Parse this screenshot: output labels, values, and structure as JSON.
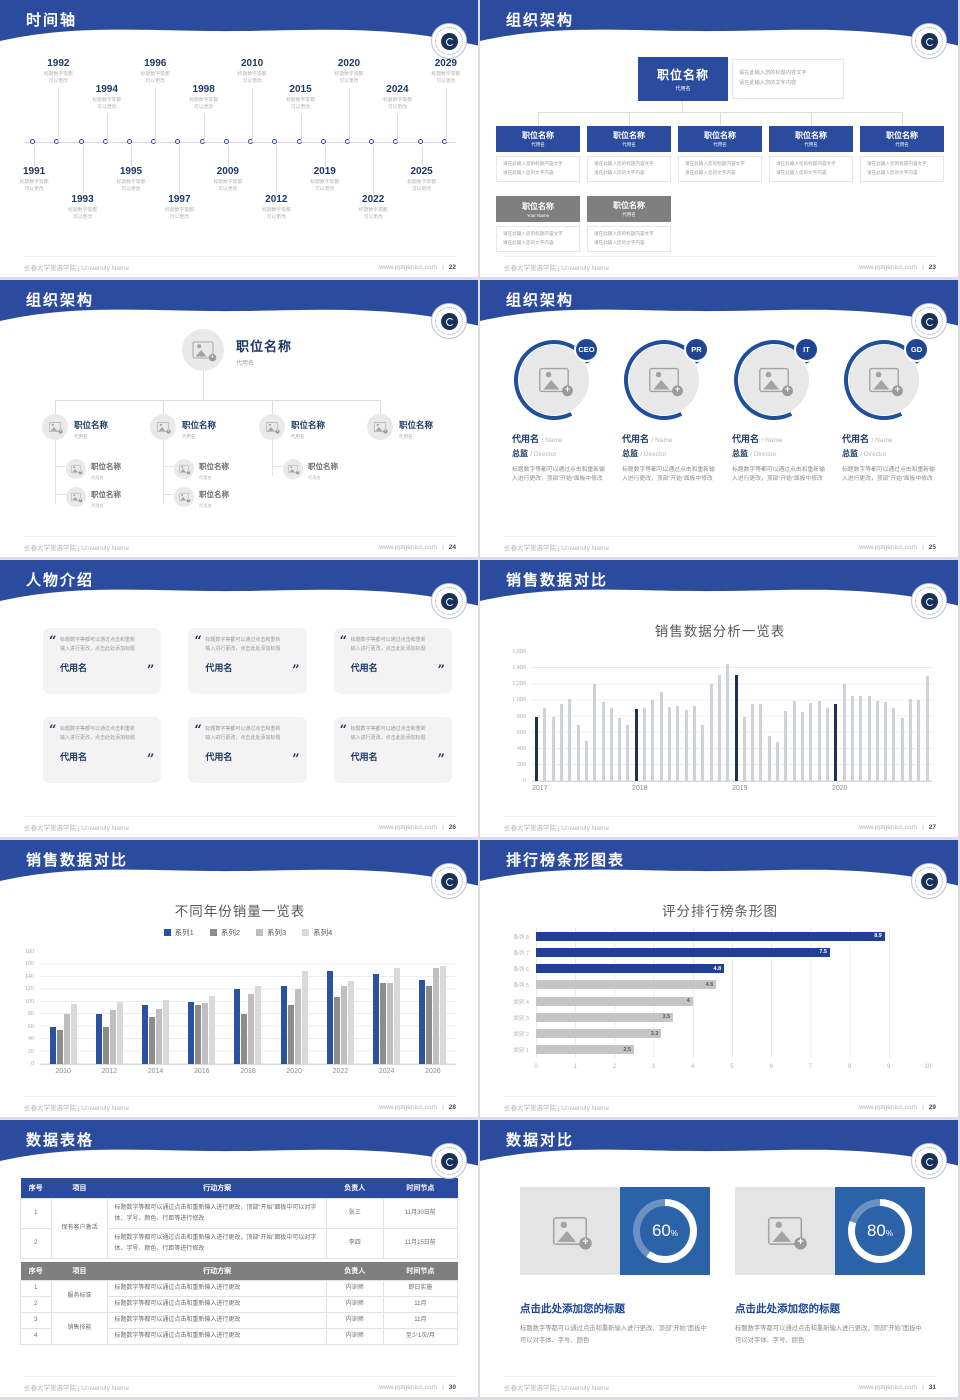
{
  "global": {
    "footer_left": "长春大学旅游学院 | University Name",
    "footer_site": "www.pptgenius.com",
    "footer_sep": "|",
    "colors": {
      "accent_blue": "#2B4B9E",
      "navy": "#1F3864",
      "gray_box": "#7F7F7F",
      "bar_gray": "#CFD3D9",
      "bar_navy": "#1C3257",
      "donut_blue": "#2B62A8"
    }
  },
  "slides": {
    "s22": {
      "title": "时间轴",
      "page": "22",
      "items": [
        {
          "year": "1991",
          "pos": "below-high",
          "note1": "标题数字等都",
          "note2": "可以更改"
        },
        {
          "year": "1992",
          "pos": "above-high",
          "note1": "标题数字等都",
          "note2": "可以更改"
        },
        {
          "year": "1993",
          "pos": "below-low",
          "note1": "标题数字等都",
          "note2": "可以更改"
        },
        {
          "year": "1994",
          "pos": "above-low",
          "note1": "标题数字等都",
          "note2": "可以更改"
        },
        {
          "year": "1995",
          "pos": "below-high",
          "note1": "标题数字等都",
          "note2": "可以更改"
        },
        {
          "year": "1996",
          "pos": "above-high",
          "note1": "标题数字等都",
          "note2": "可以更改"
        },
        {
          "year": "1997",
          "pos": "below-low",
          "note1": "标题数字等都",
          "note2": "可以更改"
        },
        {
          "year": "1998",
          "pos": "above-low",
          "note1": "标题数字等都",
          "note2": "可以更改"
        },
        {
          "year": "2009",
          "pos": "below-high",
          "note1": "标题数字等都",
          "note2": "可以更改"
        },
        {
          "year": "2010",
          "pos": "above-high",
          "note1": "标题数字等都",
          "note2": "可以更改"
        },
        {
          "year": "2012",
          "pos": "below-low",
          "note1": "标题数字等都",
          "note2": "可以更改"
        },
        {
          "year": "2015",
          "pos": "above-low",
          "note1": "标题数字等都",
          "note2": "可以更改"
        },
        {
          "year": "2019",
          "pos": "below-high",
          "note1": "标题数字等都",
          "note2": "可以更改"
        },
        {
          "year": "2020",
          "pos": "above-high",
          "note1": "标题数字等都",
          "note2": "可以更改"
        },
        {
          "year": "2022",
          "pos": "below-low",
          "note1": "标题数字等都",
          "note2": "可以更改"
        },
        {
          "year": "2024",
          "pos": "above-low",
          "note1": "标题数字等都",
          "note2": "可以更改"
        },
        {
          "year": "2025",
          "pos": "below-high",
          "note1": "标题数字等都",
          "note2": "可以更改"
        },
        {
          "year": "2029",
          "pos": "above-high",
          "note1": "标题数字等都",
          "note2": "可以更改"
        }
      ]
    },
    "s23": {
      "title": "组织架构",
      "page": "23",
      "root": {
        "name": "职位名称",
        "sub": "代用名"
      },
      "root_note": {
        "line1": "请在此输入您的标题内容文字",
        "line2": "请在此输入您的文字内容"
      },
      "row1": [
        {
          "name": "职位名称",
          "sub": "代用名",
          "note1": "请在此输入您的标题内容文字",
          "note2": "请在此输入您的文字内容"
        },
        {
          "name": "职位名称",
          "sub": "代用名",
          "note1": "请在此输入您的标题内容文字",
          "note2": "请在此输入您的文字内容"
        },
        {
          "name": "职位名称",
          "sub": "代用名",
          "note1": "请在此输入您的标题内容文字",
          "note2": "请在此输入您的文字内容"
        },
        {
          "name": "职位名称",
          "sub": "代用名",
          "note1": "请在此输入您的标题内容文字",
          "note2": "请在此输入您的文字内容"
        },
        {
          "name": "职位名称",
          "sub": "代用名",
          "note1": "请在此输入您的标题内容文字",
          "note2": "请在此输入您的文字内容"
        }
      ],
      "row2": [
        {
          "name": "职位名称",
          "sub": "Your Name",
          "note1": "请在此输入您的标题内容文字",
          "note2": "请在此输入您的文字内容"
        },
        {
          "name": "职位名称",
          "sub": "代用名",
          "note1": "请在此输入您的标题内容文字",
          "note2": "请在此输入您的文字内容"
        }
      ]
    },
    "s24": {
      "title": "组织架构",
      "page": "24",
      "root": {
        "name": "职位名称",
        "sub": "代用名"
      },
      "branches": [
        {
          "name": "职位名称",
          "sub": "代用名"
        },
        {
          "name": "职位名称",
          "sub": "代用名"
        },
        {
          "name": "职位名称",
          "sub": "代用名"
        },
        {
          "name": "职位名称",
          "sub": "代用名"
        }
      ],
      "subs": [
        {
          "name": "职位名称",
          "sub": "代用名"
        },
        {
          "name": "职位名称",
          "sub": "代用名"
        },
        {
          "name": "职位名称",
          "sub": "代用名"
        },
        {
          "name": "职位名称",
          "sub": "代用名"
        },
        {
          "name": "职位名称",
          "sub": "代用名"
        }
      ]
    },
    "s25": {
      "title": "组织架构",
      "page": "25",
      "items": [
        {
          "badge": "CEO",
          "name": "代用名",
          "name_en": "/ Name",
          "role": "总监",
          "role_en": "/ Director",
          "desc": "标题数字等都可以通过点击和重新输入进行更改，顶部“开始”面板中修改"
        },
        {
          "badge": "PR",
          "name": "代用名",
          "name_en": "/ Name",
          "role": "总监",
          "role_en": "/ Director",
          "desc": "标题数字等都可以通过点击和重新输入进行更改，顶部“开始”面板中修改"
        },
        {
          "badge": "IT",
          "name": "代用名",
          "name_en": "/ Name",
          "role": "总监",
          "role_en": "/ Director",
          "desc": "标题数字等都可以通过点击和重新输入进行更改，顶部“开始”面板中修改"
        },
        {
          "badge": "GD",
          "name": "代用名",
          "name_en": "/ Name",
          "role": "总监",
          "role_en": "/ Director",
          "desc": "标题数字等都可以通过点击和重新输入进行更改，顶部“开始”面板中修改"
        }
      ]
    },
    "s26": {
      "title": "人物介绍",
      "page": "26",
      "cards": [
        {
          "text": "标题数字等都可以通过点击和重新输入进行更改，点击此处添加标题",
          "name": "代用名"
        },
        {
          "text": "标题数字等都可以通过点击和重新输入进行更改，点击此处添加标题",
          "name": "代用名"
        },
        {
          "text": "标题数字等都可以通过点击和重新输入进行更改，点击此处添加标题",
          "name": "代用名"
        },
        {
          "text": "标题数字等都可以通过点击和重新输入进行更改，点击此处添加标题",
          "name": "代用名"
        },
        {
          "text": "标题数字等都可以通过点击和重新输入进行更改，点击此处添加标题",
          "name": "代用名"
        },
        {
          "text": "标题数字等都可以通过点击和重新输入进行更改，点击此处添加标题",
          "name": "代用名"
        }
      ]
    },
    "s27": {
      "title": "销售数据对比",
      "page": "27"
    },
    "s28": {
      "title": "销售数据对比",
      "page": "28"
    },
    "s29": {
      "title": "排行榜条形图表",
      "page": "29"
    },
    "s30": {
      "title": "数据表格",
      "page": "30",
      "headers": [
        "序号",
        "项目",
        "行动方案",
        "负责人",
        "时间节点"
      ],
      "t1": {
        "project": "保有客户激活",
        "rows": [
          {
            "no": "1",
            "plan": "标题数字等都可以通过点击和重新输入进行更改，顶部“开始”面板中可以对字体、字号、颜色、行距等进行修改",
            "owner": "张三",
            "time": "11月30日前"
          },
          {
            "no": "2",
            "plan": "标题数字等都可以通过点击和重新输入进行更改，顶部“开始”面板中可以对字体、字号、颜色、行距等进行修改",
            "owner": "李四",
            "time": "11月15日前"
          }
        ]
      },
      "t2": {
        "projects": [
          "服务标准",
          "销售技能"
        ],
        "rows": [
          {
            "no": "1",
            "plan": "标题数字等都可以通过点击和重新输入进行更改",
            "owner": "内训师",
            "time": "即日实施"
          },
          {
            "no": "2",
            "plan": "标题数字等都可以通过点击和重新输入进行更改",
            "owner": "内训师",
            "time": "11月"
          },
          {
            "no": "3",
            "plan": "标题数字等都可以通过点击和重新输入进行更改",
            "owner": "内训师",
            "time": "11月"
          },
          {
            "no": "4",
            "plan": "标题数字等都可以通过点击和重新输入进行更改",
            "owner": "内训师",
            "time": "至少1次/月"
          }
        ]
      }
    },
    "s31": {
      "title": "数据对比",
      "page": "31",
      "cards": [
        {
          "percent": 60,
          "percent_label": "60",
          "percent_sign": "%",
          "title": "点击此处添加您的标题",
          "desc": "标题数字等都可以通过点击和重新输入进行更改，顶部“开始”面板中可以对字体、字号、颜色"
        },
        {
          "percent": 80,
          "percent_label": "80",
          "percent_sign": "%",
          "title": "点击此处添加您的标题",
          "desc": "标题数字等都可以通过点击和重新输入进行更改，顶部“开始”面板中可以对字体、字号、颜色"
        }
      ]
    }
  },
  "chart_data": [
    {
      "type": "column",
      "title": "销售数据分析一览表",
      "xlabel": "",
      "ylabel": "",
      "categories": [
        "2017",
        "2018",
        "2019",
        "2020"
      ],
      "values": [
        800,
        900,
        800,
        950,
        1020,
        700,
        500,
        1200,
        980,
        900,
        780,
        700,
        890,
        900,
        1000,
        1100,
        920,
        930,
        880,
        930,
        700,
        1200,
        1310,
        1450,
        1310,
        800,
        960,
        960,
        560,
        480,
        870,
        990,
        860,
        970,
        990,
        900,
        960,
        1200,
        1050,
        1060,
        1050,
        990,
        980,
        900,
        780,
        1020,
        1000,
        1300
      ],
      "highlight_indexes": [
        0,
        12,
        24,
        36
      ],
      "ylim": [
        0,
        1600
      ],
      "yticks": [
        "1,600",
        "1,400",
        "1,200",
        "1,000",
        "800",
        "600",
        "400",
        "200",
        "0"
      ],
      "bar_color": "#CFD3D9",
      "highlight_color": "#1C3257",
      "grid": true,
      "legend_position": "none"
    },
    {
      "type": "grouped-column",
      "title": "不同年份销量一览表",
      "xlabel": "",
      "ylabel": "",
      "categories": [
        "2010",
        "2012",
        "2014",
        "2016",
        "2018",
        "2020",
        "2022",
        "2024",
        "2026"
      ],
      "series": [
        {
          "name": "系列1",
          "color": "#2A52A0",
          "values": [
            60,
            80,
            95,
            100,
            120,
            125,
            150,
            145,
            135
          ]
        },
        {
          "name": "系列2",
          "color": "#8C8C8C",
          "values": [
            55,
            60,
            75,
            95,
            80,
            95,
            108,
            130,
            125
          ]
        },
        {
          "name": "系列3",
          "color": "#BFBFBF",
          "values": [
            80,
            87,
            88,
            98,
            113,
            120,
            125,
            130,
            155
          ]
        },
        {
          "name": "系列4",
          "color": "#D9D9D9",
          "values": [
            97,
            100,
            103,
            110,
            125,
            150,
            133,
            155,
            158
          ]
        }
      ],
      "ylim": [
        0,
        180
      ],
      "yticks": [
        "180",
        "160",
        "140",
        "120",
        "100",
        "80",
        "60",
        "40",
        "20",
        "0"
      ],
      "grid": true,
      "legend_position": "top"
    },
    {
      "type": "hbar",
      "title": "评分排行榜条形图",
      "xlabel": "",
      "ylabel": "",
      "categories": [
        "系列 8",
        "系列 7",
        "系列 6",
        "系列 5",
        "类别 4",
        "类别 3",
        "类别 2",
        "类别 1"
      ],
      "values": [
        8.9,
        7.5,
        4.8,
        4.6,
        4,
        3.5,
        3.2,
        2.5
      ],
      "value_labels": [
        "8.9",
        "7.5",
        "4.8",
        "4.6",
        "4",
        "3.5",
        "3.2",
        "2.5"
      ],
      "colors": [
        "#1F4096",
        "#1F4096",
        "#1F4096",
        "#C5C5C5",
        "#C5C5C5",
        "#C5C5C5",
        "#C5C5C5",
        "#C5C5C5"
      ],
      "xlim": [
        0,
        10
      ],
      "xticks": [
        "0",
        "1",
        "2",
        "3",
        "4",
        "5",
        "6",
        "7",
        "8",
        "9",
        "10"
      ],
      "grid": true,
      "legend_position": "none"
    }
  ]
}
